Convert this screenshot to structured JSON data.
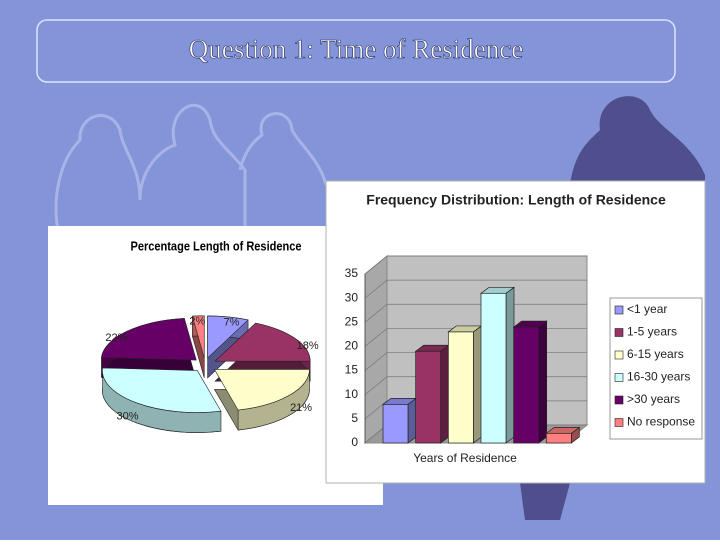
{
  "title": "Question 1: Time of Residence",
  "chart_data": [
    {
      "type": "pie",
      "title": "Percentage Length of Residence",
      "values": [
        7,
        18,
        21,
        30,
        22,
        2
      ],
      "value_labels": [
        "7%",
        "18%",
        "21%",
        "30%",
        "22%",
        "2%"
      ],
      "colors": [
        "#9999ff",
        "#993366",
        "#ffffcc",
        "#ccffff",
        "#660066",
        "#ff8080"
      ]
    },
    {
      "type": "bar",
      "title": "Frequency Distribution: Length of Residence",
      "xlabel": "Years of Residence",
      "categories": [
        "<1 year",
        "1-5 years",
        "6-15 years",
        "16-30 years",
        ">30 years",
        "No response"
      ],
      "values": [
        8,
        19,
        23,
        31,
        24,
        2
      ],
      "colors": [
        "#9999ff",
        "#993366",
        "#ffffcc",
        "#ccffff",
        "#660066",
        "#ff8080"
      ],
      "ylim": [
        0,
        35
      ],
      "yticks": [
        0,
        5,
        10,
        15,
        20,
        25,
        30,
        35
      ],
      "grid": true,
      "legend": "right"
    }
  ]
}
